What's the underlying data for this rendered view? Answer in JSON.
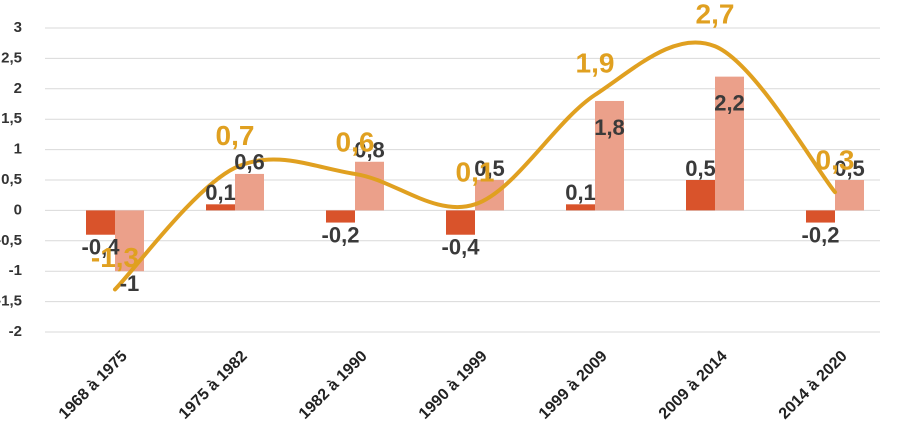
{
  "chart_data": {
    "type": "bar-line",
    "categories": [
      "1968 à 1975",
      "1975 à 1982",
      "1982 à 1990",
      "1990 à 1999",
      "1999 à 2009",
      "2009 à 2014",
      "2014 à 2020"
    ],
    "series": [
      {
        "type": "bar",
        "color": "#d9532b",
        "values": [
          -0.4,
          0.1,
          -0.2,
          -0.4,
          0.1,
          0.5,
          -0.2
        ],
        "value_labels": [
          "-0,4",
          "0,1",
          "-0,2",
          "-0,4",
          "0,1",
          "0,5",
          "-0,2"
        ]
      },
      {
        "type": "bar",
        "color": "#eba08a",
        "values": [
          -1,
          0.6,
          0.8,
          0.5,
          1.8,
          2.2,
          0.5
        ],
        "value_labels": [
          "-1",
          "0,6",
          "0,8",
          "0,5",
          "1,8",
          "2,2",
          "0,5"
        ]
      },
      {
        "type": "line",
        "color": "#e0a020",
        "values": [
          -1.3,
          0.7,
          0.6,
          0.1,
          1.9,
          2.7,
          0.3
        ],
        "value_labels": [
          "-1,3",
          "0,7",
          "0,6",
          "0,1",
          "1,9",
          "2,7",
          "0,3"
        ]
      }
    ],
    "ylim": [
      -2,
      3
    ],
    "yticks": [
      {
        "value": 3,
        "label": "3"
      },
      {
        "value": 2.5,
        "label": "2,5"
      },
      {
        "value": 2,
        "label": "2"
      },
      {
        "value": 1.5,
        "label": "1,5"
      },
      {
        "value": 1,
        "label": "1"
      },
      {
        "value": 0.5,
        "label": "0,5"
      },
      {
        "value": 0,
        "label": "0"
      },
      {
        "value": -0.5,
        "label": "-0,5"
      },
      {
        "value": -1,
        "label": "-1"
      },
      {
        "value": -1.5,
        "label": "-1,5"
      },
      {
        "value": -2,
        "label": "-2"
      }
    ],
    "grid": true
  }
}
